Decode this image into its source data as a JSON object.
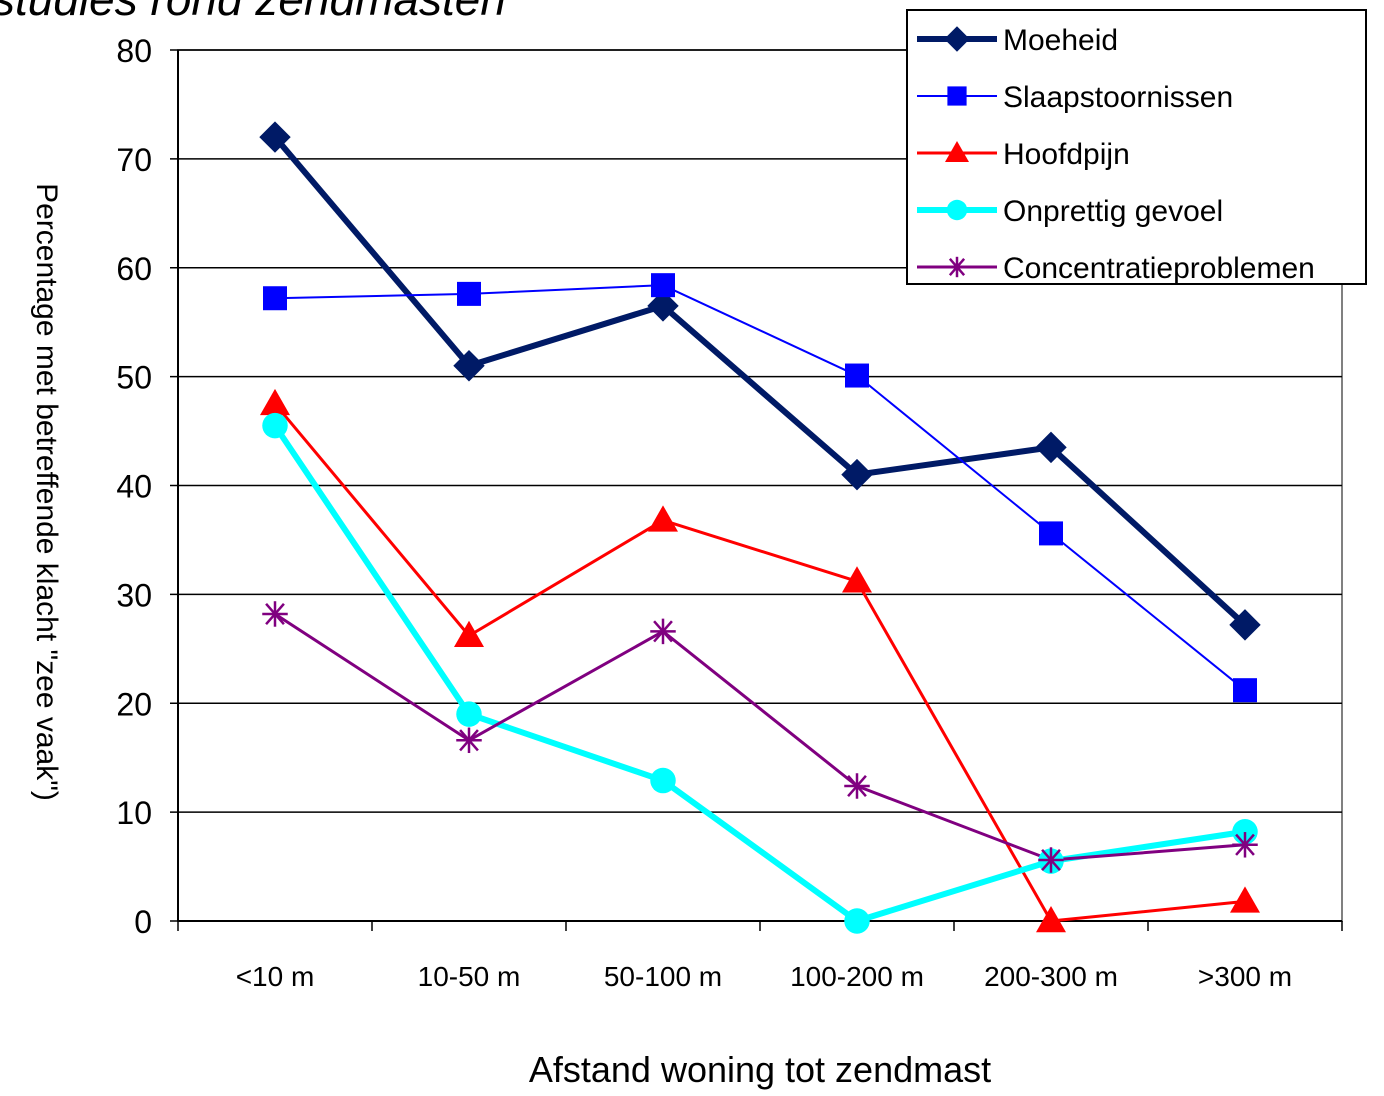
{
  "page": {
    "title_fragment": "studies rond zendmasten"
  },
  "chart_data": {
    "type": "line",
    "title": "",
    "xlabel": "Afstand woning tot zendmast",
    "ylabel": "Percentage met betreffende klacht \"zee vaak\")",
    "ylim": [
      0,
      80
    ],
    "yticks": [
      0,
      10,
      20,
      30,
      40,
      50,
      60,
      70,
      80
    ],
    "grid": "horizontal",
    "legend_position": "top-right",
    "categories": [
      "<10 m",
      "10-50 m",
      "50-100 m",
      "100-200 m",
      "200-300 m",
      ">300 m"
    ],
    "series": [
      {
        "name": "Moeheid",
        "values": [
          72,
          51,
          56.5,
          41,
          43.5,
          27.2
        ],
        "color": "#001a66",
        "marker": "diamond",
        "width": 6
      },
      {
        "name": "Slaapstoornissen",
        "values": [
          57.2,
          57.6,
          58.4,
          50.1,
          35.6,
          21.2
        ],
        "color": "#0000ff",
        "marker": "square",
        "width": 2
      },
      {
        "name": "Hoofdpijn",
        "values": [
          47.5,
          26.2,
          36.8,
          31.2,
          0,
          1.8
        ],
        "color": "#ff0000",
        "marker": "triangle",
        "width": 3
      },
      {
        "name": "Onprettig gevoel",
        "values": [
          45.5,
          19,
          12.9,
          0,
          5.5,
          8.2
        ],
        "color": "#00ffff",
        "marker": "circle",
        "width": 6
      },
      {
        "name": "Concentratieproblemen",
        "values": [
          28.2,
          16.6,
          26.6,
          12.4,
          5.6,
          7
        ],
        "color": "#800080",
        "marker": "star",
        "width": 3
      }
    ]
  }
}
